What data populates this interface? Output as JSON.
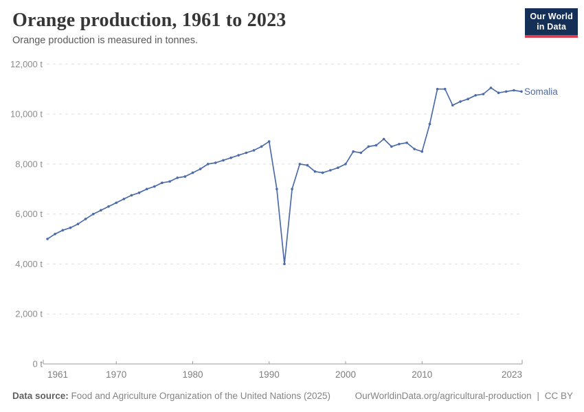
{
  "header": {
    "title": "Orange production, 1961 to 2023",
    "subtitle": "Orange production is measured in tonnes."
  },
  "logo": {
    "line1": "Our World",
    "line2": "in Data",
    "bg_color": "#143056",
    "accent_color": "#d93f4d"
  },
  "footer": {
    "source_label": "Data source:",
    "source_text": "Food and Agriculture Organization of the United Nations (2025)",
    "url": "OurWorldinData.org/agricultural-production",
    "separator": "|",
    "license": "CC BY"
  },
  "chart_data": {
    "type": "line",
    "title": "Orange production, 1961 to 2023",
    "subtitle": "Orange production is measured in tonnes.",
    "xlabel": "",
    "ylabel": "tonnes",
    "xlim": [
      1961,
      2023
    ],
    "ylim": [
      0,
      12000
    ],
    "grid": "horizontal-dashed",
    "legend_position": "end-of-line",
    "x_ticks": [
      1961,
      1970,
      1980,
      1990,
      2000,
      2010,
      2023
    ],
    "y_ticks": [
      0,
      2000,
      4000,
      6000,
      8000,
      10000,
      12000
    ],
    "y_tick_labels": [
      "0 t",
      "2,000 t",
      "4,000 t",
      "6,000 t",
      "8,000 t",
      "10,000 t",
      "12,000 t"
    ],
    "colors": {
      "line": "#4c6ba8",
      "grid": "#dddddd",
      "axis": "#9a9a9a"
    },
    "series": [
      {
        "name": "Somalia",
        "color": "#4c6ba8",
        "x": [
          1961,
          1962,
          1963,
          1964,
          1965,
          1966,
          1967,
          1968,
          1969,
          1970,
          1971,
          1972,
          1973,
          1974,
          1975,
          1976,
          1977,
          1978,
          1979,
          1980,
          1981,
          1982,
          1983,
          1984,
          1985,
          1986,
          1987,
          1988,
          1989,
          1990,
          1991,
          1992,
          1993,
          1994,
          1995,
          1996,
          1997,
          1998,
          1999,
          2000,
          2001,
          2002,
          2003,
          2004,
          2005,
          2006,
          2007,
          2008,
          2009,
          2010,
          2011,
          2012,
          2013,
          2014,
          2015,
          2016,
          2017,
          2018,
          2019,
          2020,
          2021,
          2022,
          2023
        ],
        "values": [
          5000,
          5200,
          5350,
          5450,
          5600,
          5800,
          6000,
          6150,
          6300,
          6450,
          6600,
          6750,
          6850,
          7000,
          7100,
          7250,
          7300,
          7450,
          7500,
          7650,
          7800,
          8000,
          8050,
          8150,
          8250,
          8350,
          8450,
          8550,
          8700,
          8900,
          7000,
          4000,
          7000,
          8000,
          7950,
          7700,
          7650,
          7750,
          7850,
          8000,
          8500,
          8450,
          8700,
          8750,
          9000,
          8700,
          8800,
          8850,
          8600,
          8500,
          9600,
          11000,
          11000,
          10350,
          10500,
          10600,
          10750,
          10800,
          11050,
          10850,
          10900,
          10950,
          10900
        ]
      }
    ]
  }
}
